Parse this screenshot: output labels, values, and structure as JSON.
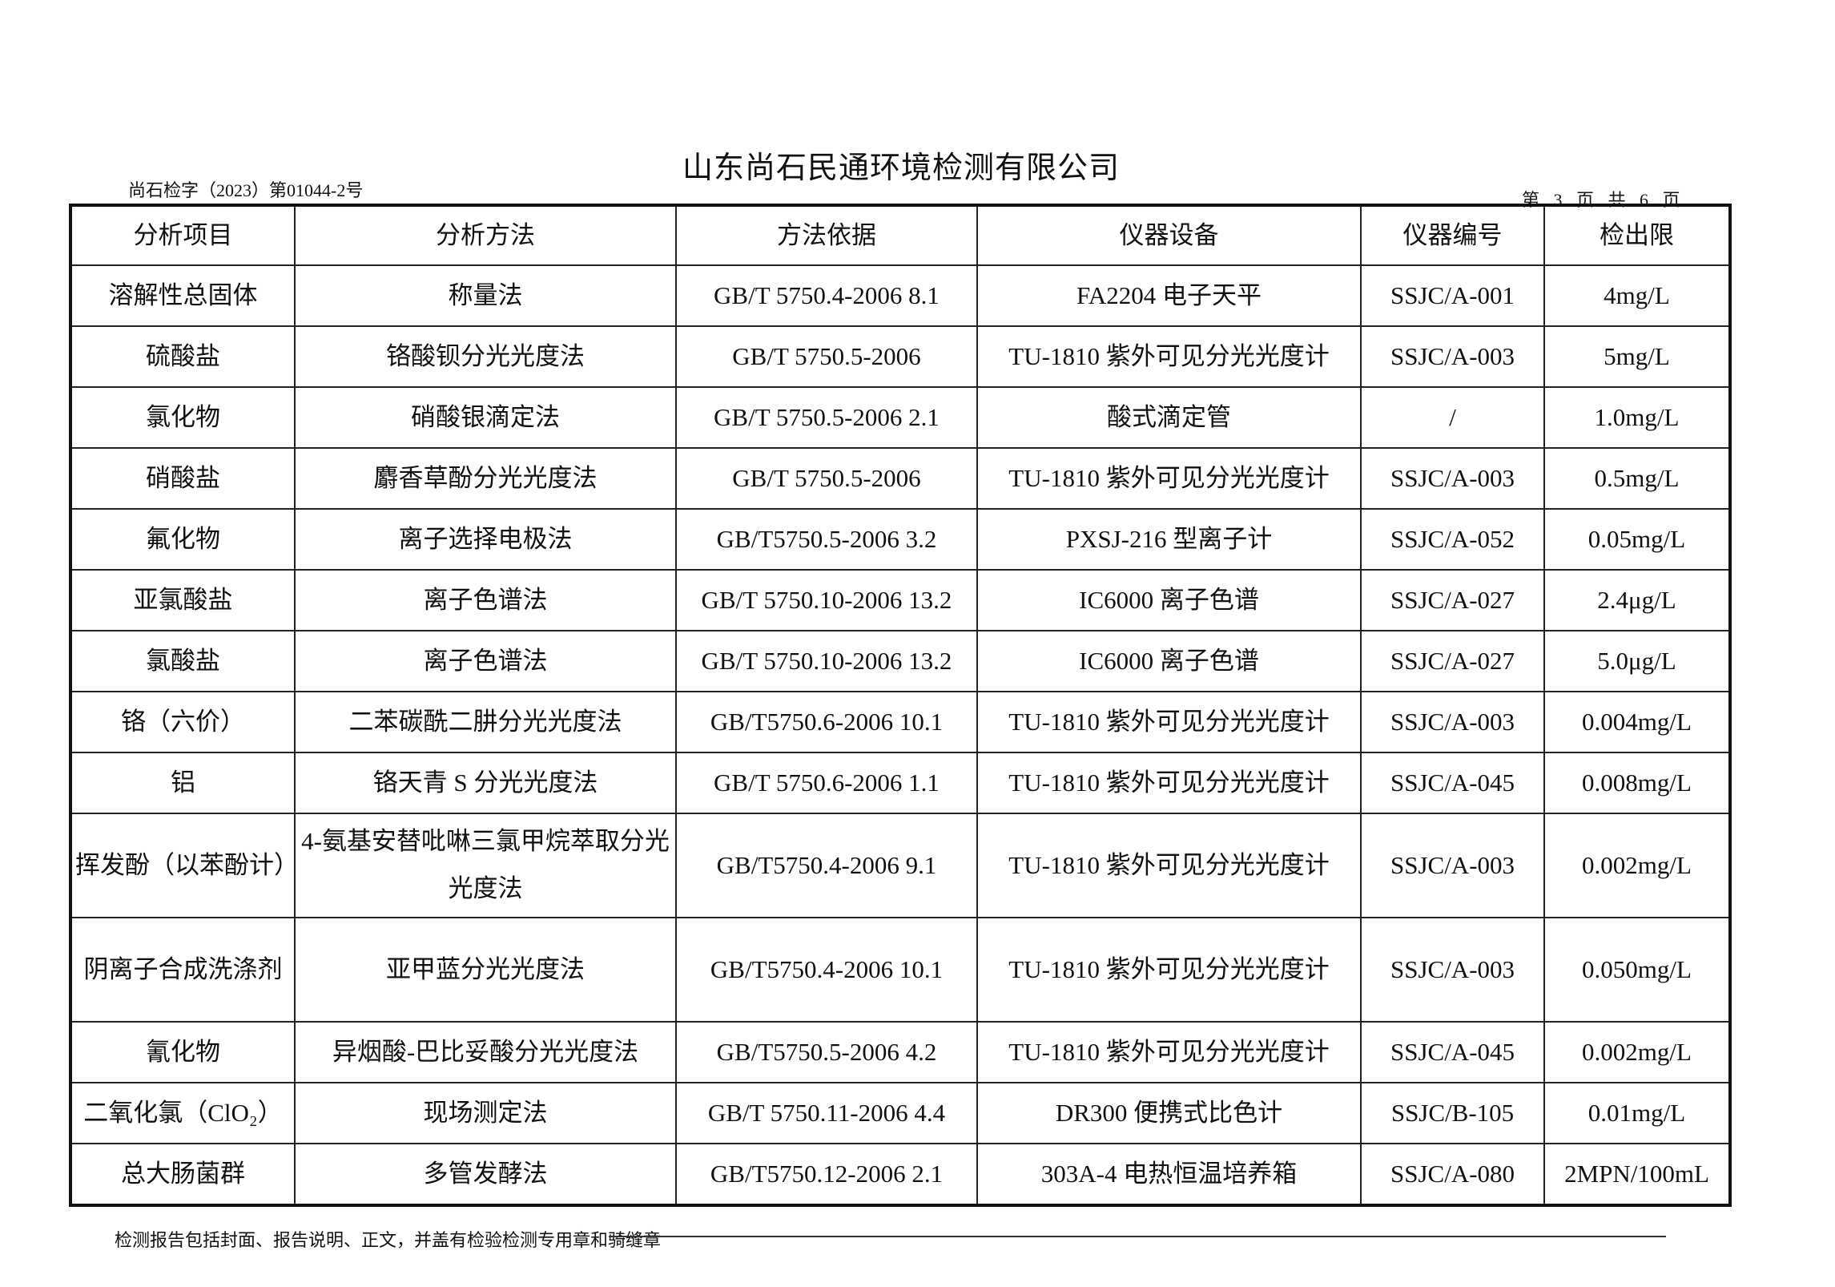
{
  "header": {
    "company": "山东尚石民通环境检测有限公司",
    "report_no": "尚石检字（2023）第01044-2号",
    "page_info": "第 3 页 共 6 页"
  },
  "table": {
    "columns": [
      "分析项目",
      "分析方法",
      "方法依据",
      "仪器设备",
      "仪器编号",
      "检出限"
    ],
    "rows": [
      [
        "溶解性总固体",
        "称量法",
        "GB/T 5750.4-2006 8.1",
        "FA2204 电子天平",
        "SSJC/A-001",
        "4mg/L"
      ],
      [
        "硫酸盐",
        "铬酸钡分光光度法",
        "GB/T 5750.5-2006",
        "TU-1810 紫外可见分光光度计",
        "SSJC/A-003",
        "5mg/L"
      ],
      [
        "氯化物",
        "硝酸银滴定法",
        "GB/T 5750.5-2006 2.1",
        "酸式滴定管",
        "/",
        "1.0mg/L"
      ],
      [
        "硝酸盐",
        "麝香草酚分光光度法",
        "GB/T 5750.5-2006",
        "TU-1810 紫外可见分光光度计",
        "SSJC/A-003",
        "0.5mg/L"
      ],
      [
        "氟化物",
        "离子选择电极法",
        "GB/T5750.5-2006 3.2",
        "PXSJ-216 型离子计",
        "SSJC/A-052",
        "0.05mg/L"
      ],
      [
        "亚氯酸盐",
        "离子色谱法",
        "GB/T 5750.10-2006 13.2",
        "IC6000 离子色谱",
        "SSJC/A-027",
        "2.4μg/L"
      ],
      [
        "氯酸盐",
        "离子色谱法",
        "GB/T 5750.10-2006 13.2",
        "IC6000 离子色谱",
        "SSJC/A-027",
        "5.0μg/L"
      ],
      [
        "铬（六价）",
        "二苯碳酰二肼分光光度法",
        "GB/T5750.6-2006 10.1",
        "TU-1810 紫外可见分光光度计",
        "SSJC/A-003",
        "0.004mg/L"
      ],
      [
        "铝",
        "铬天青 S 分光光度法",
        "GB/T 5750.6-2006 1.1",
        "TU-1810 紫外可见分光光度计",
        "SSJC/A-045",
        "0.008mg/L"
      ],
      [
        "挥发酚（以苯酚计）",
        "4-氨基安替吡啉三氯甲烷萃取分光光度法",
        "GB/T5750.4-2006 9.1",
        "TU-1810 紫外可见分光光度计",
        "SSJC/A-003",
        "0.002mg/L"
      ],
      [
        "阴离子合成洗涤剂",
        "亚甲蓝分光光度法",
        "GB/T5750.4-2006 10.1",
        "TU-1810 紫外可见分光光度计",
        "SSJC/A-003",
        "0.050mg/L"
      ],
      [
        "氰化物",
        "异烟酸-巴比妥酸分光光度法",
        "GB/T5750.5-2006 4.2",
        "TU-1810 紫外可见分光光度计",
        "SSJC/A-045",
        "0.002mg/L"
      ],
      [
        "二氧化氯（ClO₂）",
        "现场测定法",
        "GB/T 5750.11-2006 4.4",
        "DR300 便携式比色计",
        "SSJC/B-105",
        "0.01mg/L"
      ],
      [
        "总大肠菌群",
        "多管发酵法",
        "GB/T5750.12-2006 2.1",
        "303A-4 电热恒温培养箱",
        "SSJC/A-080",
        "2MPN/100mL"
      ]
    ],
    "tall_rows": [
      9,
      10
    ]
  },
  "footer": {
    "note": "检测报告包括封面、报告说明、正文，并盖有检验检测专用章和骑缝章"
  }
}
